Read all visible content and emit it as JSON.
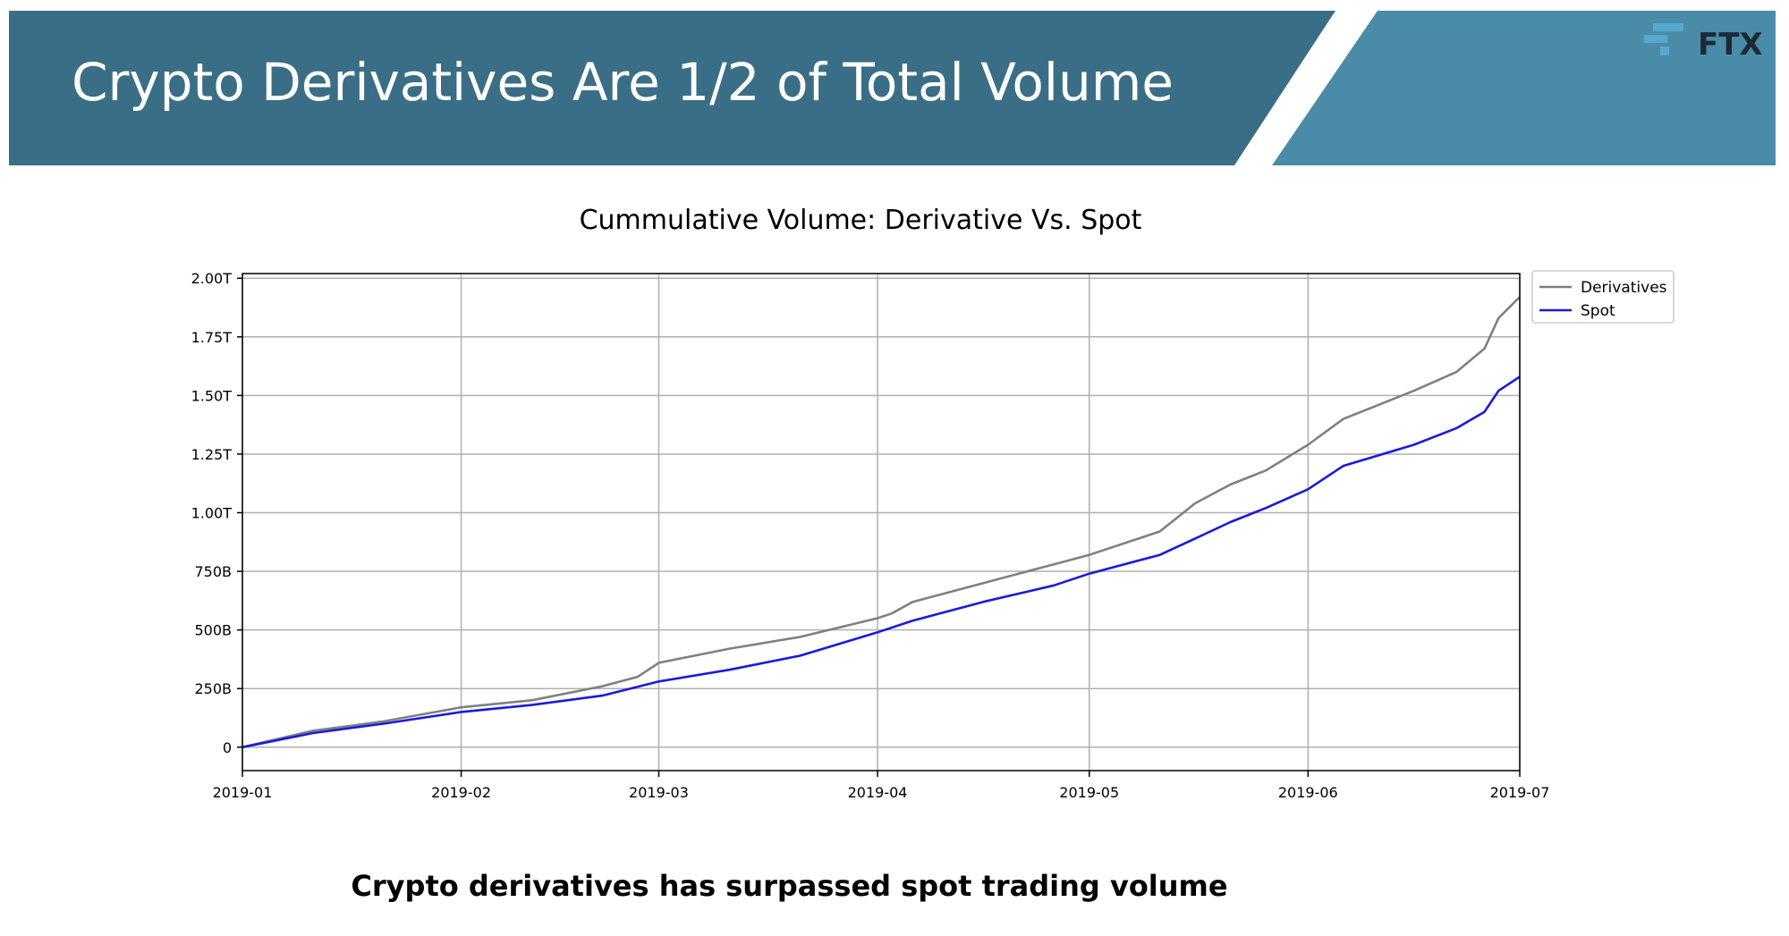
{
  "slide": {
    "title": "Crypto Derivatives Are 1/2 of Total Volume",
    "caption": "Crypto derivatives has surpassed spot trading volume",
    "logo_text": "FTX",
    "logo_icon": "ftx-logo-icon",
    "colors": {
      "banner_dark": "#3a6e86",
      "banner_light": "#4a8ca8",
      "logo_icon": "#56a8d0"
    }
  },
  "chart_data": {
    "type": "line",
    "title": "Cummulative Volume: Derivative Vs. Spot",
    "xlabel": "",
    "ylabel": "",
    "x_ticks": [
      "2019-01",
      "2019-02",
      "2019-03",
      "2019-04",
      "2019-05",
      "2019-06",
      "2019-07"
    ],
    "y_ticks": [
      "0",
      "250B",
      "500B",
      "750B",
      "1.00T",
      "1.25T",
      "1.50T",
      "1.75T",
      "2.00T"
    ],
    "ylim": [
      -0.1,
      2.02
    ],
    "xlim": [
      "2019-01-01",
      "2019-07-01"
    ],
    "grid": true,
    "legend_position": "top-right-outside",
    "units": "trillions USD",
    "series": [
      {
        "name": "Derivatives",
        "color": "#808080",
        "points": [
          [
            "2019-01-01",
            0.0
          ],
          [
            "2019-01-11",
            0.07
          ],
          [
            "2019-01-21",
            0.11
          ],
          [
            "2019-02-01",
            0.17
          ],
          [
            "2019-02-11",
            0.2
          ],
          [
            "2019-02-21",
            0.26
          ],
          [
            "2019-02-26",
            0.3
          ],
          [
            "2019-03-01",
            0.36
          ],
          [
            "2019-03-11",
            0.42
          ],
          [
            "2019-03-21",
            0.47
          ],
          [
            "2019-04-01",
            0.55
          ],
          [
            "2019-04-03",
            0.57
          ],
          [
            "2019-04-06",
            0.62
          ],
          [
            "2019-04-16",
            0.7
          ],
          [
            "2019-04-26",
            0.78
          ],
          [
            "2019-05-01",
            0.82
          ],
          [
            "2019-05-11",
            0.92
          ],
          [
            "2019-05-16",
            1.04
          ],
          [
            "2019-05-21",
            1.12
          ],
          [
            "2019-05-26",
            1.18
          ],
          [
            "2019-06-01",
            1.29
          ],
          [
            "2019-06-06",
            1.4
          ],
          [
            "2019-06-16",
            1.52
          ],
          [
            "2019-06-22",
            1.6
          ],
          [
            "2019-06-26",
            1.7
          ],
          [
            "2019-06-28",
            1.83
          ],
          [
            "2019-07-01",
            1.92
          ]
        ]
      },
      {
        "name": "Spot",
        "color": "#1a1adc",
        "points": [
          [
            "2019-01-01",
            0.0
          ],
          [
            "2019-01-11",
            0.06
          ],
          [
            "2019-01-21",
            0.1
          ],
          [
            "2019-02-01",
            0.15
          ],
          [
            "2019-02-11",
            0.18
          ],
          [
            "2019-02-21",
            0.22
          ],
          [
            "2019-03-01",
            0.28
          ],
          [
            "2019-03-11",
            0.33
          ],
          [
            "2019-03-21",
            0.39
          ],
          [
            "2019-04-01",
            0.49
          ],
          [
            "2019-04-06",
            0.54
          ],
          [
            "2019-04-16",
            0.62
          ],
          [
            "2019-04-26",
            0.69
          ],
          [
            "2019-05-01",
            0.74
          ],
          [
            "2019-05-11",
            0.82
          ],
          [
            "2019-05-16",
            0.89
          ],
          [
            "2019-05-21",
            0.96
          ],
          [
            "2019-05-26",
            1.02
          ],
          [
            "2019-06-01",
            1.1
          ],
          [
            "2019-06-06",
            1.2
          ],
          [
            "2019-06-16",
            1.29
          ],
          [
            "2019-06-22",
            1.36
          ],
          [
            "2019-06-26",
            1.43
          ],
          [
            "2019-06-28",
            1.52
          ],
          [
            "2019-07-01",
            1.58
          ]
        ]
      }
    ]
  }
}
